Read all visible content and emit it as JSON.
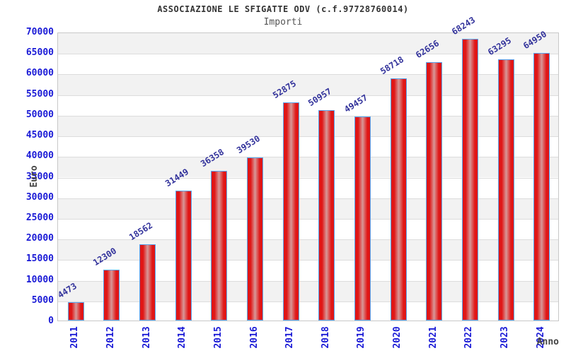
{
  "header": {
    "title": "ASSOCIAZIONE LE SFIGATTE ODV (c.f.97728760014)",
    "subtitle": "Importi"
  },
  "chart_data": {
    "type": "bar",
    "title": "ASSOCIAZIONE LE SFIGATTE ODV (c.f.97728760014)",
    "subtitle": "Importi",
    "xlabel": "Anno",
    "ylabel": "Euro",
    "categories": [
      "2011",
      "2012",
      "2013",
      "2014",
      "2015",
      "2016",
      "2017",
      "2018",
      "2019",
      "2020",
      "2021",
      "2022",
      "2023",
      "2024"
    ],
    "values": [
      4473,
      12300,
      18562,
      31449,
      36358,
      39530,
      52875,
      50957,
      49457,
      58718,
      62656,
      68243,
      63295,
      64950
    ],
    "value_labels": [
      "4473",
      "12300",
      "18562",
      "31449",
      "36358",
      "39530",
      "52875",
      "50957",
      "49457",
      "58718",
      "62656",
      "68243",
      "63295",
      "64950"
    ],
    "ylim": [
      0,
      70000
    ],
    "ytick_step": 5000,
    "grid": true,
    "legend": "none",
    "layout_hints": {
      "alternating_bands": true,
      "x_tick_rotation_deg": 90,
      "value_label_rotation_deg": 32
    },
    "colors": {
      "bar_fill": "#e01616",
      "bar_fill_center": "#d89898",
      "bar_border": "#58a6f0",
      "tick_label": "#1a1ad6",
      "value_label": "#32329b",
      "band_gray": "#f2f2f2",
      "gridline": "#dcdcdc",
      "plot_border": "#c8c8c8",
      "title": "#333333",
      "subtitle": "#555555",
      "axis_label": "#444444"
    }
  }
}
